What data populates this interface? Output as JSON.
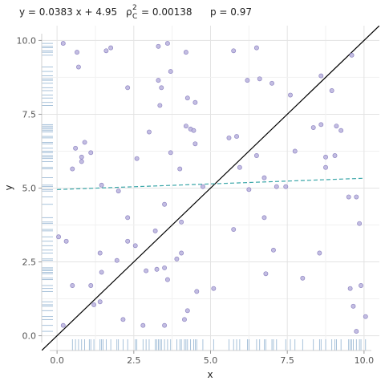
{
  "stats": {
    "equation": "y = 0.0383 x + 4.95",
    "rho_symbol": "ρ",
    "rho_sup": "2",
    "rho_sub": "C",
    "rho_value": "= 0.00138",
    "p_label": "p = 0.97"
  },
  "chart_data": {
    "type": "scatter",
    "xlabel": "x",
    "ylabel": "y",
    "xlim": [
      -0.5,
      10.5
    ],
    "ylim": [
      -0.5,
      10.5
    ],
    "x_ticks": [
      0,
      2.5,
      5,
      7.5,
      10
    ],
    "x_tick_labels": [
      "0.0",
      "2.5",
      "5.0",
      "7.5",
      "10.0"
    ],
    "y_ticks": [
      0,
      2.5,
      5,
      7.5,
      10
    ],
    "y_tick_labels": [
      "0.0",
      "2.5",
      "5.0",
      "7.5",
      "10.0"
    ],
    "grid": true,
    "rug": true,
    "point_color": "#b9b2dd",
    "point_edge_color": "#8f86c2",
    "rug_color": "#7fa6c9",
    "regression_line": {
      "slope": 0.0383,
      "intercept": 4.95,
      "color": "#3aa6a8",
      "style": "dashed"
    },
    "identity_line": {
      "slope": 1,
      "intercept": 0,
      "color": "#000000"
    },
    "points": [
      [
        0.2,
        9.9
      ],
      [
        0.65,
        9.6
      ],
      [
        0.7,
        9.1
      ],
      [
        1.6,
        9.65
      ],
      [
        1.75,
        9.75
      ],
      [
        3.3,
        9.8
      ],
      [
        3.6,
        9.9
      ],
      [
        4.2,
        9.6
      ],
      [
        5.75,
        9.65
      ],
      [
        6.5,
        9.75
      ],
      [
        9.6,
        9.5
      ],
      [
        0.6,
        6.35
      ],
      [
        0.9,
        6.55
      ],
      [
        1.1,
        6.2
      ],
      [
        0.8,
        5.9
      ],
      [
        0.5,
        5.65
      ],
      [
        0.8,
        6.05
      ],
      [
        2.6,
        6.0
      ],
      [
        3.0,
        6.9
      ],
      [
        3.7,
        6.2
      ],
      [
        4.0,
        5.65
      ],
      [
        4.2,
        7.1
      ],
      [
        4.35,
        7.0
      ],
      [
        4.45,
        6.95
      ],
      [
        4.5,
        6.5
      ],
      [
        4.25,
        8.05
      ],
      [
        4.5,
        7.9
      ],
      [
        3.4,
        8.4
      ],
      [
        3.3,
        8.65
      ],
      [
        3.7,
        8.95
      ],
      [
        2.3,
        8.4
      ],
      [
        3.35,
        7.8
      ],
      [
        5.6,
        6.7
      ],
      [
        5.85,
        6.75
      ],
      [
        5.95,
        5.7
      ],
      [
        6.2,
        8.65
      ],
      [
        6.6,
        8.7
      ],
      [
        7.0,
        8.55
      ],
      [
        7.6,
        8.15
      ],
      [
        8.35,
        7.05
      ],
      [
        8.6,
        7.15
      ],
      [
        8.6,
        8.8
      ],
      [
        8.95,
        8.3
      ],
      [
        9.1,
        7.1
      ],
      [
        9.25,
        6.95
      ],
      [
        8.75,
        6.05
      ],
      [
        9.05,
        6.1
      ],
      [
        8.75,
        5.7
      ],
      [
        7.75,
        6.25
      ],
      [
        6.5,
        6.1
      ],
      [
        6.75,
        5.35
      ],
      [
        7.15,
        5.05
      ],
      [
        7.45,
        5.05
      ],
      [
        6.25,
        4.95
      ],
      [
        4.75,
        5.05
      ],
      [
        1.45,
        5.1
      ],
      [
        2.0,
        4.9
      ],
      [
        0.05,
        3.35
      ],
      [
        0.3,
        3.2
      ],
      [
        2.3,
        4.0
      ],
      [
        2.3,
        3.2
      ],
      [
        2.55,
        3.05
      ],
      [
        3.2,
        3.55
      ],
      [
        3.5,
        4.45
      ],
      [
        4.05,
        3.85
      ],
      [
        5.75,
        3.6
      ],
      [
        6.75,
        4.0
      ],
      [
        7.05,
        2.9
      ],
      [
        6.8,
        2.1
      ],
      [
        8.0,
        1.95
      ],
      [
        8.55,
        2.8
      ],
      [
        9.5,
        4.7
      ],
      [
        9.75,
        4.7
      ],
      [
        9.85,
        3.8
      ],
      [
        1.4,
        2.8
      ],
      [
        1.95,
        2.55
      ],
      [
        2.9,
        2.2
      ],
      [
        3.25,
        2.25
      ],
      [
        3.9,
        2.6
      ],
      [
        3.5,
        2.3
      ],
      [
        3.6,
        1.9
      ],
      [
        4.05,
        2.8
      ],
      [
        4.55,
        1.5
      ],
      [
        5.1,
        1.6
      ],
      [
        0.5,
        1.7
      ],
      [
        1.1,
        1.7
      ],
      [
        1.45,
        2.15
      ],
      [
        1.2,
        1.05
      ],
      [
        1.4,
        1.15
      ],
      [
        2.15,
        0.55
      ],
      [
        2.8,
        0.35
      ],
      [
        3.5,
        0.35
      ],
      [
        4.15,
        0.55
      ],
      [
        4.25,
        0.85
      ],
      [
        0.2,
        0.35
      ],
      [
        9.55,
        1.6
      ],
      [
        9.9,
        1.7
      ],
      [
        9.65,
        1.0
      ],
      [
        9.75,
        0.15
      ],
      [
        10.05,
        0.65
      ]
    ],
    "rug_x": [
      0.5,
      0.6,
      0.7,
      0.8,
      0.9,
      1.05,
      1.1,
      1.2,
      1.4,
      1.45,
      1.5,
      1.6,
      1.75,
      1.95,
      2.0,
      2.15,
      2.3,
      2.55,
      2.6,
      2.8,
      2.9,
      3.0,
      3.2,
      3.25,
      3.3,
      3.35,
      3.4,
      3.5,
      3.6,
      3.7,
      3.9,
      4.0,
      4.05,
      4.15,
      4.2,
      4.25,
      4.35,
      4.45,
      4.5,
      4.55,
      4.75,
      5.1,
      5.6,
      5.75,
      5.85,
      5.95,
      6.2,
      6.25,
      6.5,
      6.6,
      6.75,
      6.8,
      7.0,
      7.05,
      7.15,
      7.45,
      7.6,
      7.75,
      8.0,
      8.35,
      8.55,
      8.6,
      8.75,
      8.95,
      9.05,
      9.1,
      9.25,
      9.5,
      9.55,
      9.6,
      9.65,
      9.75,
      9.85,
      9.9,
      10.05
    ],
    "rug_y": [
      0.15,
      0.35,
      0.55,
      0.65,
      0.85,
      1.0,
      1.05,
      1.15,
      1.5,
      1.6,
      1.7,
      1.9,
      1.95,
      2.1,
      2.15,
      2.2,
      2.25,
      2.3,
      2.55,
      2.6,
      2.8,
      2.9,
      3.05,
      3.2,
      3.35,
      3.55,
      3.6,
      3.8,
      3.85,
      4.0,
      4.45,
      4.7,
      4.9,
      4.95,
      5.05,
      5.1,
      5.35,
      5.65,
      5.7,
      5.9,
      6.0,
      6.05,
      6.1,
      6.2,
      6.25,
      6.35,
      6.5,
      6.55,
      6.7,
      6.75,
      6.9,
      6.95,
      7.0,
      7.05,
      7.1,
      7.15,
      7.8,
      7.9,
      8.05,
      8.15,
      8.3,
      8.4,
      8.55,
      8.65,
      8.7,
      8.8,
      8.95,
      9.1,
      9.5,
      9.6,
      9.65,
      9.75,
      9.8,
      9.9
    ]
  }
}
